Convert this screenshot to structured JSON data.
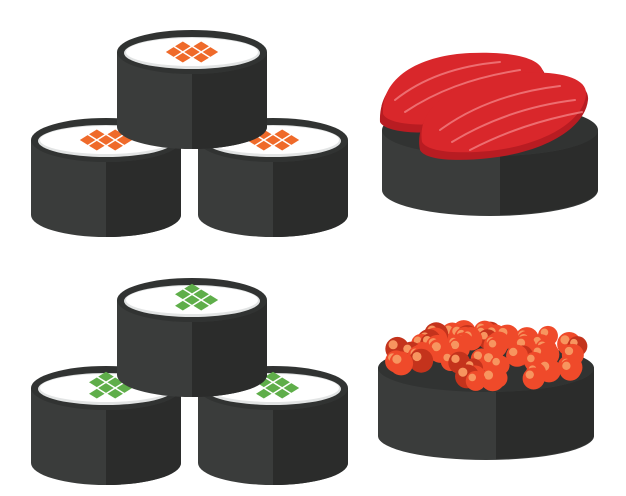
{
  "illustration": {
    "background": "#ffffff",
    "colors": {
      "nori_front": "#3a3c3b",
      "nori_shade": "#2b2c2b",
      "nori_rim": "#313332",
      "rice": "#ffffff",
      "rice_shadow": "#e2e4e4",
      "salmon": "#ef6a2a",
      "cucumber": "#5fae4a",
      "tuna": "#d9272b",
      "tuna_dark": "#b81c22",
      "tuna_stripe": "#f07a7c",
      "roe": "#ef4a2a",
      "roe_dark": "#c4331c",
      "roe_highlight": "#f7955f"
    },
    "groups": [
      {
        "id": "salmon-maki-stack",
        "kind": "maki-stack",
        "filling": "salmon",
        "roll_count": 3
      },
      {
        "id": "tuna-nigiri",
        "kind": "gunkan-topped",
        "topping": "tuna",
        "slice_count": 2
      },
      {
        "id": "cucumber-maki-stack",
        "kind": "maki-stack",
        "filling": "cucumber",
        "roll_count": 3
      },
      {
        "id": "salmon-roe-gunkan",
        "kind": "gunkan-topped",
        "topping": "roe"
      }
    ]
  }
}
